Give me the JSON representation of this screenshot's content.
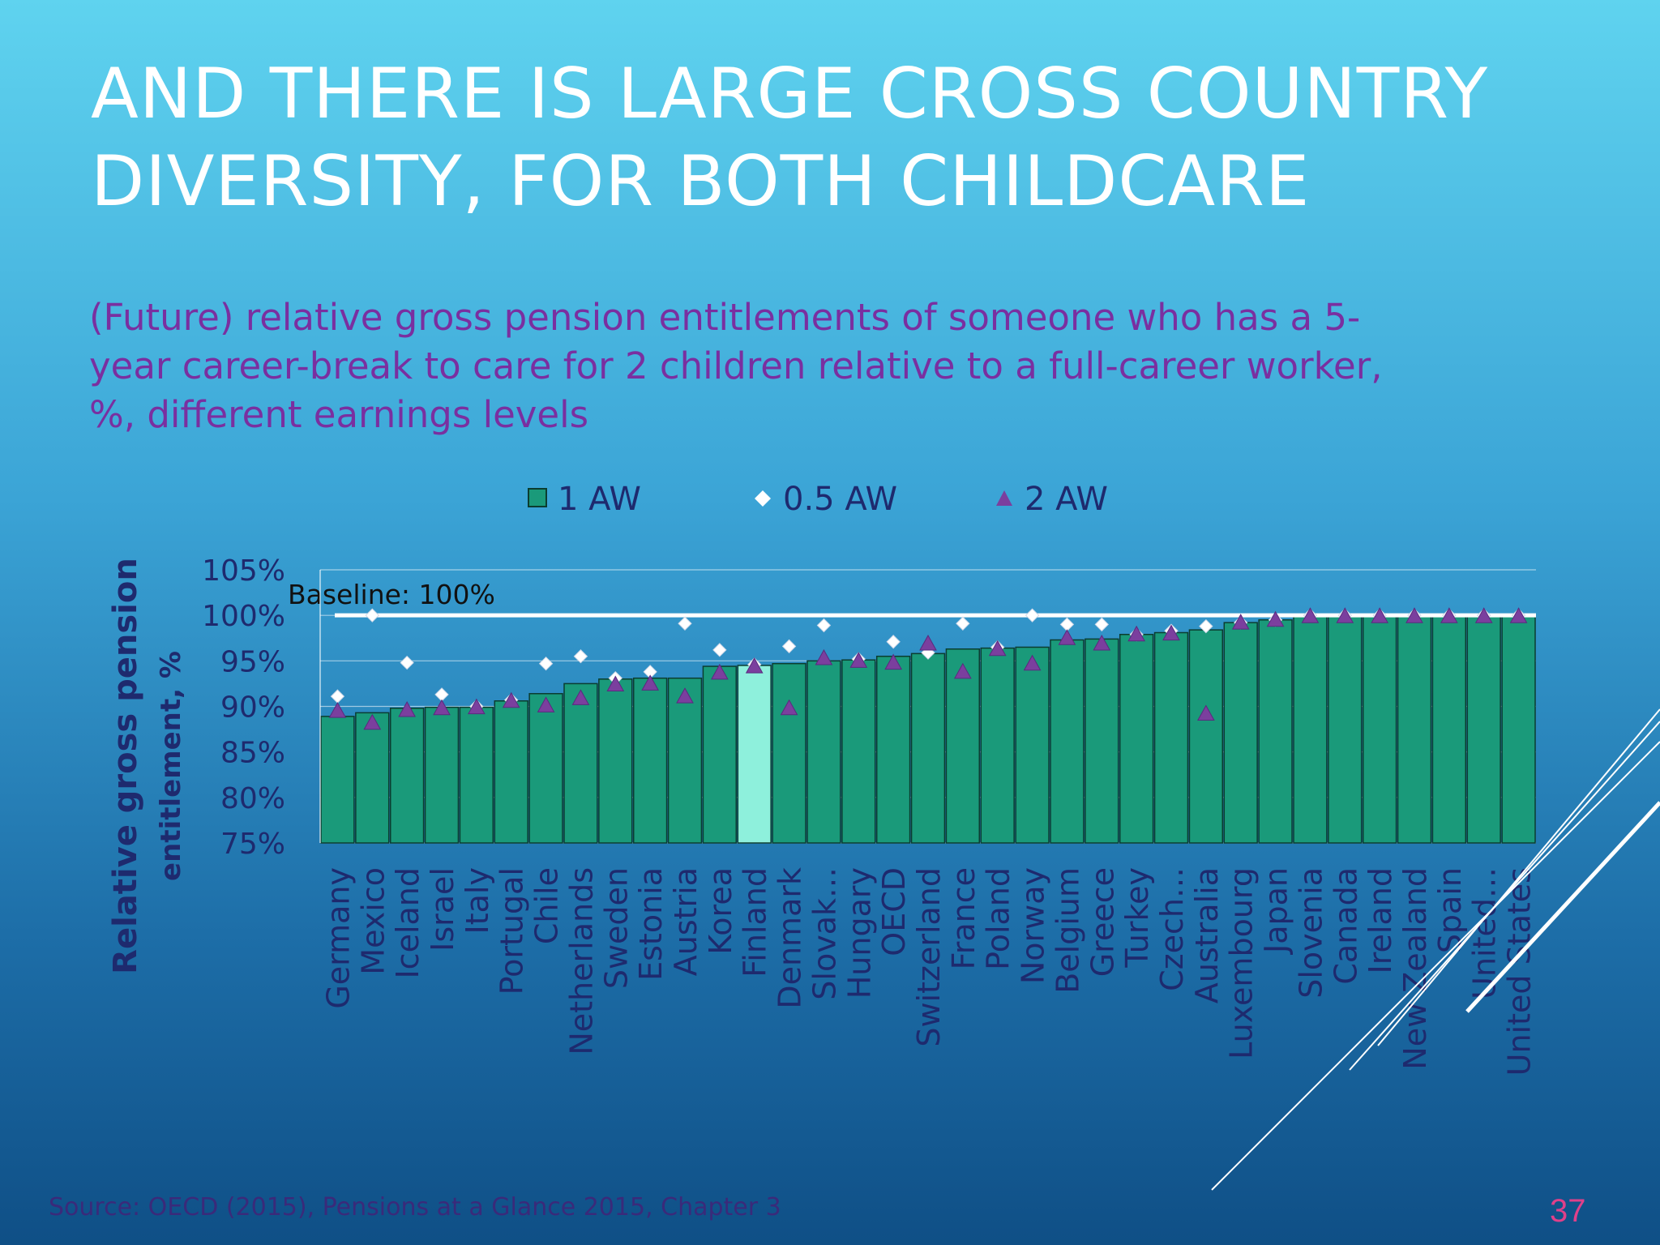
{
  "slide": {
    "title_lines": [
      "AND THERE IS LARGE CROSS COUNTRY",
      "DIVERSITY,  FOR BOTH CHILDCARE"
    ],
    "subtitle_lines": [
      "(Future) relative gross pension entitlements of someone who has a 5-",
      "year career-break to care for 2 children relative to a full-career worker,",
      "%, different earnings levels"
    ],
    "source": "Source: OECD (2015), Pensions at a Glance 2015, Chapter 3",
    "slide_number": "37"
  },
  "colors": {
    "bar": "#1a9a7a",
    "bar_highlight": "#8ef0dc",
    "diamond": "#ffffff",
    "triangle": "#7b3f9e",
    "axis_text": "#1e2a6e",
    "baseline": "#ffffff"
  },
  "chart_data": {
    "type": "bar",
    "ylabel_lines": [
      "Relative gross pension",
      "entitlement, %"
    ],
    "ylim": [
      75,
      105
    ],
    "yticks": [
      75,
      80,
      85,
      90,
      95,
      100,
      105
    ],
    "ytick_labels": [
      "75%",
      "80%",
      "85%",
      "90%",
      "95%",
      "100%",
      "105%"
    ],
    "baseline": {
      "value": 100,
      "label": "Baseline: 100%"
    },
    "highlight_category": "Finland",
    "categories": [
      "Germany",
      "Mexico",
      "Iceland",
      "Israel",
      "Italy",
      "Portugal",
      "Chile",
      "Netherlands",
      "Sweden",
      "Estonia",
      "Austria",
      "Korea",
      "Finland",
      "Denmark",
      "Slovak…",
      "Hungary",
      "OECD",
      "Switzerland",
      "France",
      "Poland",
      "Norway",
      "Belgium",
      "Greece",
      "Turkey",
      "Czech…",
      "Australia",
      "Luxembourg",
      "Japan",
      "Slovenia",
      "Canada",
      "Ireland",
      "New Zealand",
      "Spain",
      "United…",
      "United States"
    ],
    "series": [
      {
        "name": "1 AW",
        "marker": "bar",
        "values": [
          88.9,
          89.3,
          89.8,
          89.9,
          89.9,
          90.6,
          91.4,
          92.5,
          93.0,
          93.1,
          93.1,
          94.4,
          94.5,
          94.7,
          95.0,
          95.1,
          95.5,
          95.8,
          96.3,
          96.4,
          96.5,
          97.3,
          97.4,
          97.9,
          98.1,
          98.4,
          99.2,
          99.5,
          99.9,
          99.9,
          99.9,
          99.9,
          99.9,
          99.9,
          99.9
        ]
      },
      {
        "name": "0.5 AW",
        "marker": "diamond",
        "values": [
          91.1,
          100.0,
          94.8,
          91.3,
          90.0,
          90.7,
          94.7,
          95.5,
          93.1,
          93.8,
          99.1,
          96.2,
          94.6,
          96.6,
          98.9,
          95.2,
          97.1,
          95.9,
          99.1,
          96.5,
          100.0,
          99.0,
          99.0,
          97.9,
          98.3,
          98.8,
          99.2,
          99.5,
          100.0,
          100.0,
          100.0,
          100.0,
          100.0,
          100.0,
          100.0
        ]
      },
      {
        "name": "2 AW",
        "marker": "triangle",
        "values": [
          89.5,
          88.2,
          89.6,
          89.8,
          89.9,
          90.6,
          90.1,
          90.9,
          92.4,
          92.5,
          91.1,
          93.7,
          94.4,
          89.8,
          95.3,
          95.0,
          94.8,
          96.9,
          93.8,
          96.3,
          94.7,
          97.5,
          96.9,
          97.9,
          98.0,
          89.2,
          99.2,
          99.5,
          99.9,
          99.9,
          99.9,
          99.9,
          99.9,
          99.9,
          99.9
        ]
      }
    ]
  }
}
